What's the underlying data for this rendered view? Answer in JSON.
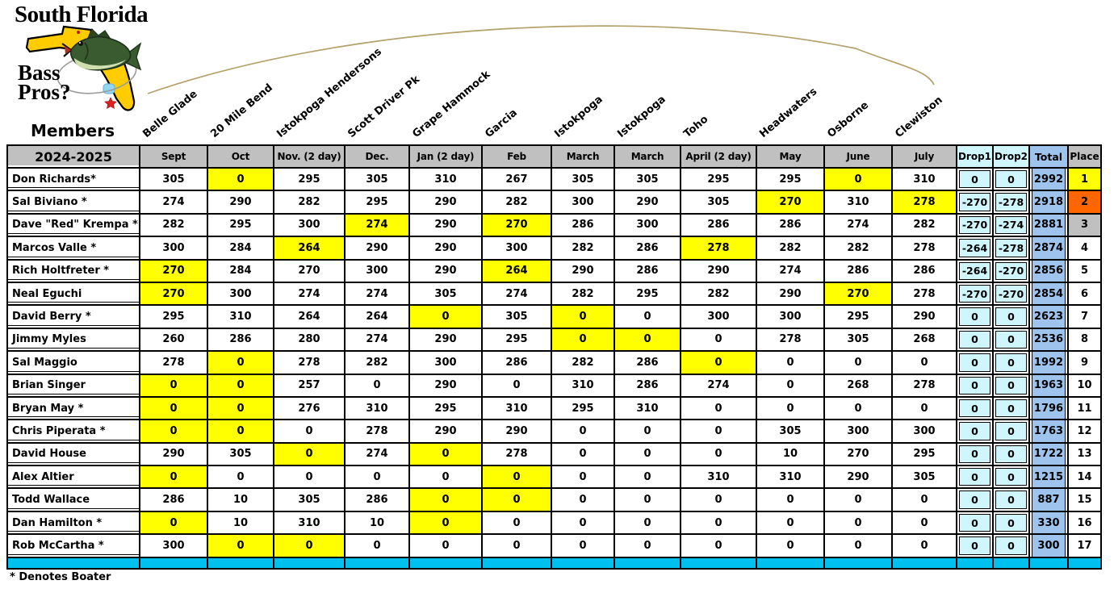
{
  "logo": {
    "line1": "South Florida",
    "line2": "Bass",
    "line3": "Pros?"
  },
  "members_label": "Members",
  "season": "2024-2025",
  "footer_note": "* Denotes Boater",
  "venues": [
    "Belle Glade",
    "20 Mile Bend",
    "Istokpoga Hendersons",
    "Scott Driver Pk",
    "Grape Hammock",
    "Garcia",
    "Istokpoga",
    "Istokpoga",
    "Toho",
    "Headwaters",
    "Osborne",
    "Clewiston"
  ],
  "months": [
    "Sept",
    "Oct",
    "Nov. (2 day)",
    "Dec.",
    "Jan (2 day)",
    "Feb",
    "March",
    "March",
    "April (2 day)",
    "May",
    "June",
    "July"
  ],
  "extra_headers": [
    "Drop1",
    "Drop2",
    "Total",
    "Place"
  ],
  "colors": {
    "header_bg": "#C0C0C0",
    "highlight_yellow": "#FFFF00",
    "drop_bg": "#CFF5FD",
    "total_bg": "#9EC4EE",
    "bottom_strip": "#00C0F0",
    "place1": "#FFFF00",
    "place2": "#FF6600",
    "place3": "#C0C0C0",
    "map_yellow": "#FFCC00",
    "line_tan": "#B3A06A"
  },
  "rows": [
    {
      "name": "Don Richards*",
      "scores": [
        305,
        0,
        295,
        305,
        310,
        267,
        305,
        305,
        295,
        295,
        0,
        310
      ],
      "highlights": [
        1,
        10
      ],
      "drop1": 0,
      "drop2": 0,
      "total": 2992,
      "place": 1
    },
    {
      "name": "Sal Biviano *",
      "scores": [
        274,
        290,
        282,
        295,
        290,
        282,
        300,
        290,
        305,
        270,
        310,
        278
      ],
      "highlights": [
        9,
        11
      ],
      "drop1": -270,
      "drop2": -278,
      "total": 2918,
      "place": 2
    },
    {
      "name": "Dave \"Red\" Krempa *",
      "scores": [
        282,
        295,
        300,
        274,
        290,
        270,
        286,
        300,
        286,
        286,
        274,
        282
      ],
      "highlights": [
        3,
        5
      ],
      "drop1": -270,
      "drop2": -274,
      "total": 2881,
      "place": 3
    },
    {
      "name": "Marcos Valle *",
      "scores": [
        300,
        284,
        264,
        290,
        290,
        300,
        282,
        286,
        278,
        282,
        282,
        278
      ],
      "highlights": [
        2,
        8
      ],
      "drop1": -264,
      "drop2": -278,
      "total": 2874,
      "place": 4
    },
    {
      "name": "Rich Holtfreter *",
      "scores": [
        270,
        284,
        270,
        300,
        290,
        264,
        290,
        286,
        290,
        274,
        286,
        286
      ],
      "highlights": [
        0,
        5
      ],
      "drop1": -264,
      "drop2": -270,
      "total": 2856,
      "place": 5
    },
    {
      "name": "Neal Eguchi",
      "scores": [
        270,
        300,
        274,
        274,
        305,
        274,
        282,
        295,
        282,
        290,
        270,
        278
      ],
      "highlights": [
        0,
        10
      ],
      "drop1": -270,
      "drop2": -270,
      "total": 2854,
      "place": 6
    },
    {
      "name": "David Berry *",
      "scores": [
        295,
        310,
        264,
        264,
        0,
        305,
        0,
        0,
        300,
        300,
        295,
        290
      ],
      "highlights": [
        4,
        6
      ],
      "drop1": 0,
      "drop2": 0,
      "total": 2623,
      "place": 7
    },
    {
      "name": "Jimmy Myles",
      "scores": [
        260,
        286,
        280,
        274,
        290,
        295,
        0,
        0,
        0,
        278,
        305,
        268
      ],
      "highlights": [
        6,
        7
      ],
      "drop1": 0,
      "drop2": 0,
      "total": 2536,
      "place": 8
    },
    {
      "name": "Sal Maggio",
      "scores": [
        278,
        0,
        278,
        282,
        300,
        286,
        282,
        286,
        0,
        0,
        0,
        0
      ],
      "highlights": [
        1,
        8
      ],
      "drop1": 0,
      "drop2": 0,
      "total": 1992,
      "place": 9
    },
    {
      "name": "Brian Singer",
      "scores": [
        0,
        0,
        257,
        0,
        290,
        0,
        310,
        286,
        274,
        0,
        268,
        278
      ],
      "highlights": [
        0,
        1
      ],
      "drop1": 0,
      "drop2": 0,
      "total": 1963,
      "place": 10
    },
    {
      "name": "Bryan May *",
      "scores": [
        0,
        0,
        276,
        310,
        295,
        310,
        295,
        310,
        0,
        0,
        0,
        0
      ],
      "highlights": [
        0,
        1
      ],
      "drop1": 0,
      "drop2": 0,
      "total": 1796,
      "place": 11
    },
    {
      "name": "Chris Piperata *",
      "scores": [
        0,
        0,
        0,
        278,
        290,
        290,
        0,
        0,
        0,
        305,
        300,
        300
      ],
      "highlights": [
        0,
        1
      ],
      "drop1": 0,
      "drop2": 0,
      "total": 1763,
      "place": 12
    },
    {
      "name": "David House",
      "scores": [
        290,
        305,
        0,
        274,
        0,
        278,
        0,
        0,
        0,
        10,
        270,
        295
      ],
      "highlights": [
        2,
        4
      ],
      "drop1": 0,
      "drop2": 0,
      "total": 1722,
      "place": 13
    },
    {
      "name": "Alex Altier",
      "scores": [
        0,
        0,
        0,
        0,
        0,
        0,
        0,
        0,
        310,
        310,
        290,
        305
      ],
      "highlights": [
        0,
        5
      ],
      "drop1": 0,
      "drop2": 0,
      "total": 1215,
      "place": 14
    },
    {
      "name": "Todd Wallace",
      "scores": [
        286,
        10,
        305,
        286,
        0,
        0,
        0,
        0,
        0,
        0,
        0,
        0
      ],
      "highlights": [
        4,
        5
      ],
      "drop1": 0,
      "drop2": 0,
      "total": 887,
      "place": 15
    },
    {
      "name": "Dan Hamilton *",
      "scores": [
        0,
        10,
        310,
        10,
        0,
        0,
        0,
        0,
        0,
        0,
        0,
        0
      ],
      "highlights": [
        0,
        4
      ],
      "drop1": 0,
      "drop2": 0,
      "total": 330,
      "place": 16
    },
    {
      "name": "Rob McCartha *",
      "scores": [
        300,
        0,
        0,
        0,
        0,
        0,
        0,
        0,
        0,
        0,
        0,
        0
      ],
      "highlights": [
        1,
        2
      ],
      "drop1": 0,
      "drop2": 0,
      "total": 300,
      "place": 17
    }
  ]
}
